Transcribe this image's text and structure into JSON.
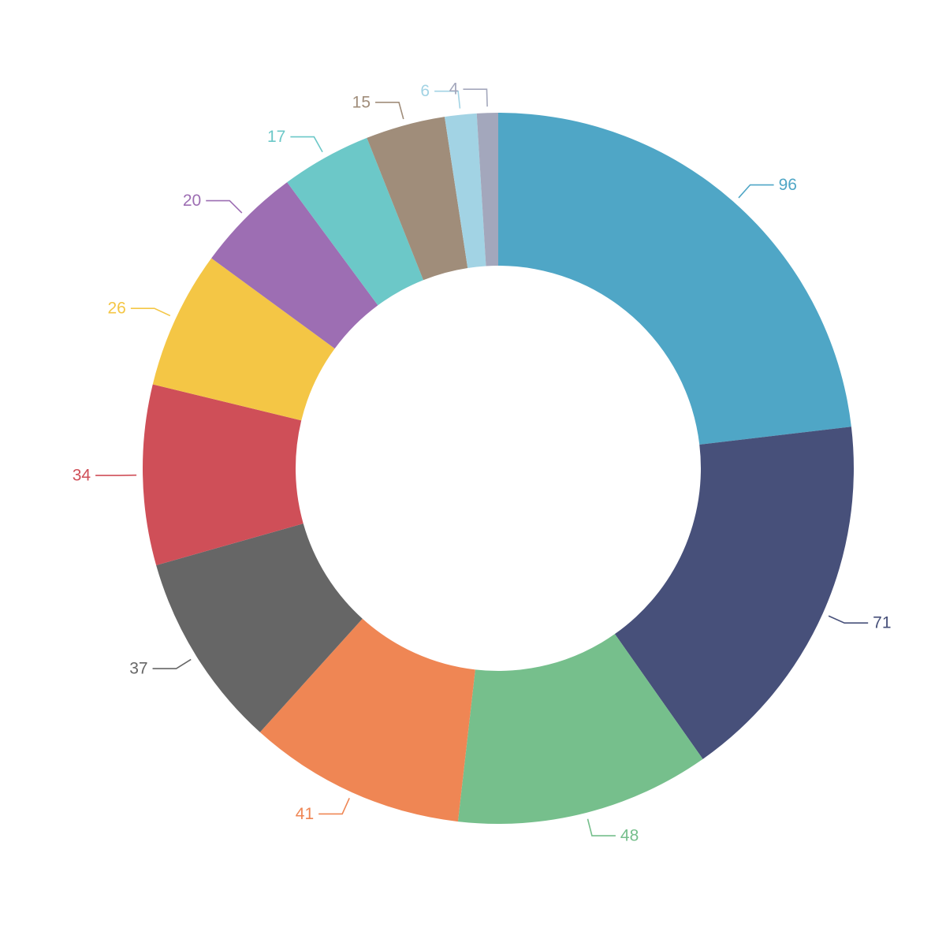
{
  "chart_data": {
    "type": "pie",
    "donut": true,
    "values": [
      96,
      71,
      48,
      41,
      37,
      34,
      26,
      20,
      17,
      15,
      6,
      4
    ],
    "labels": [
      "96",
      "71",
      "48",
      "41",
      "37",
      "34",
      "26",
      "20",
      "17",
      "15",
      "6",
      "4"
    ],
    "colors": [
      "#4fa6c6",
      "#47507a",
      "#76bf8c",
      "#ef8654",
      "#666666",
      "#cf4f58",
      "#f4c645",
      "#9d6eb3",
      "#6cc8c8",
      "#a08d7a",
      "#a2d3e4",
      "#a3a7bc"
    ],
    "start_angle": "12 o'clock",
    "direction": "clockwise",
    "legend": "none"
  }
}
